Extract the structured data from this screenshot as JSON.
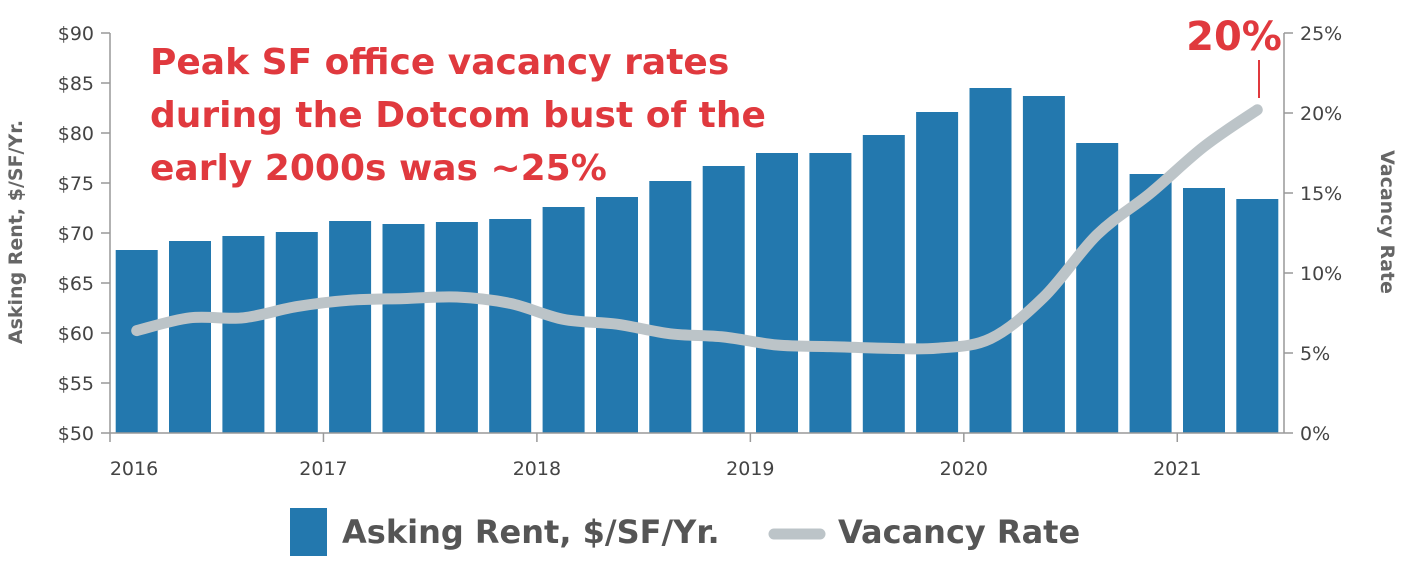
{
  "chart_data": {
    "type": "bar",
    "x": [
      "2016 Q1",
      "2016 Q2",
      "2016 Q3",
      "2016 Q4",
      "2017 Q1",
      "2017 Q2",
      "2017 Q3",
      "2017 Q4",
      "2018 Q1",
      "2018 Q2",
      "2018 Q3",
      "2018 Q4",
      "2019 Q1",
      "2019 Q2",
      "2019 Q3",
      "2019 Q4",
      "2020 Q1",
      "2020 Q2",
      "2020 Q3",
      "2020 Q4",
      "2021 Q1",
      "2021 Q2"
    ],
    "x_tick_labels": [
      "2016",
      "2017",
      "2018",
      "2019",
      "2020",
      "2021"
    ],
    "series": [
      {
        "name": "Asking Rent, $/SF/Yr.",
        "type": "bar",
        "axis": "left",
        "color": "#2378ae",
        "values": [
          68.3,
          69.2,
          69.7,
          70.1,
          71.2,
          70.9,
          71.1,
          71.4,
          72.6,
          73.6,
          75.2,
          76.7,
          78.0,
          78.0,
          79.8,
          82.1,
          84.5,
          83.7,
          79.0,
          75.9,
          74.5,
          73.4
        ]
      },
      {
        "name": "Vacancy Rate",
        "type": "line",
        "axis": "right",
        "color": "#bcc4c8",
        "values": [
          6.4,
          7.2,
          7.2,
          7.9,
          8.3,
          8.4,
          8.5,
          8.1,
          7.1,
          6.8,
          6.2,
          6.0,
          5.5,
          5.4,
          5.3,
          5.3,
          5.9,
          8.5,
          12.4,
          15.0,
          17.9,
          20.2
        ]
      }
    ],
    "ylabel": "Asking Rent, $/SF/Yr.",
    "y2label": "Vacancy Rate",
    "ylim": [
      50,
      90
    ],
    "y2lim": [
      0,
      25
    ],
    "y_ticks": [
      "$50",
      "$55",
      "$60",
      "$65",
      "$70",
      "$75",
      "$80",
      "$85",
      "$90"
    ],
    "y2_ticks": [
      "0%",
      "5%",
      "10%",
      "15%",
      "20%",
      "25%"
    ],
    "annotation": {
      "lines": [
        "Peak SF office vacancy rates",
        "during the Dotcom bust of the",
        "early 2000s was ~25%"
      ],
      "color": "#e0393e"
    },
    "peak_label": {
      "text": "20%",
      "color": "#e0393e"
    },
    "legend": {
      "placement": "bottom",
      "items": [
        {
          "label": "Asking Rent, $/SF/Yr.",
          "kind": "bar",
          "color": "#2378ae"
        },
        {
          "label": "Vacancy Rate",
          "kind": "line",
          "color": "#bcc4c8"
        }
      ]
    },
    "grid": false
  }
}
